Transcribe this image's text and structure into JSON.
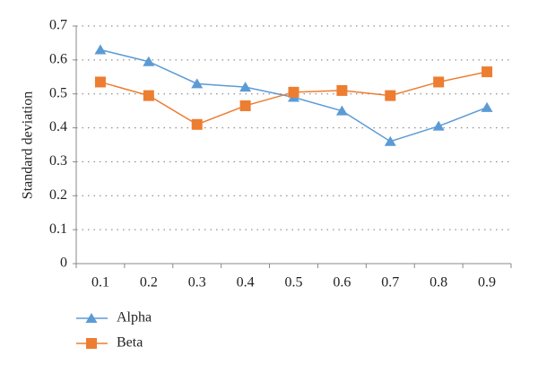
{
  "chart_data": {
    "type": "line",
    "ylabel": "Standard deviation",
    "categories": [
      "0.1",
      "0.2",
      "0.3",
      "0.4",
      "0.5",
      "0.6",
      "0.7",
      "0.8",
      "0.9"
    ],
    "series": [
      {
        "name": "Alpha",
        "color": "#5b9bd5",
        "marker": "triangle",
        "values": [
          0.63,
          0.595,
          0.53,
          0.52,
          0.49,
          0.45,
          0.36,
          0.405,
          0.46
        ]
      },
      {
        "name": "Beta",
        "color": "#ed7d31",
        "marker": "square",
        "values": [
          0.535,
          0.495,
          0.41,
          0.465,
          0.505,
          0.51,
          0.495,
          0.535,
          0.565
        ]
      }
    ],
    "ylim": [
      0,
      0.7
    ],
    "yticks": [
      0,
      0.1,
      0.2,
      0.3,
      0.4,
      0.5,
      0.6,
      0.7
    ],
    "grid": true,
    "legend": "bottom-left"
  }
}
